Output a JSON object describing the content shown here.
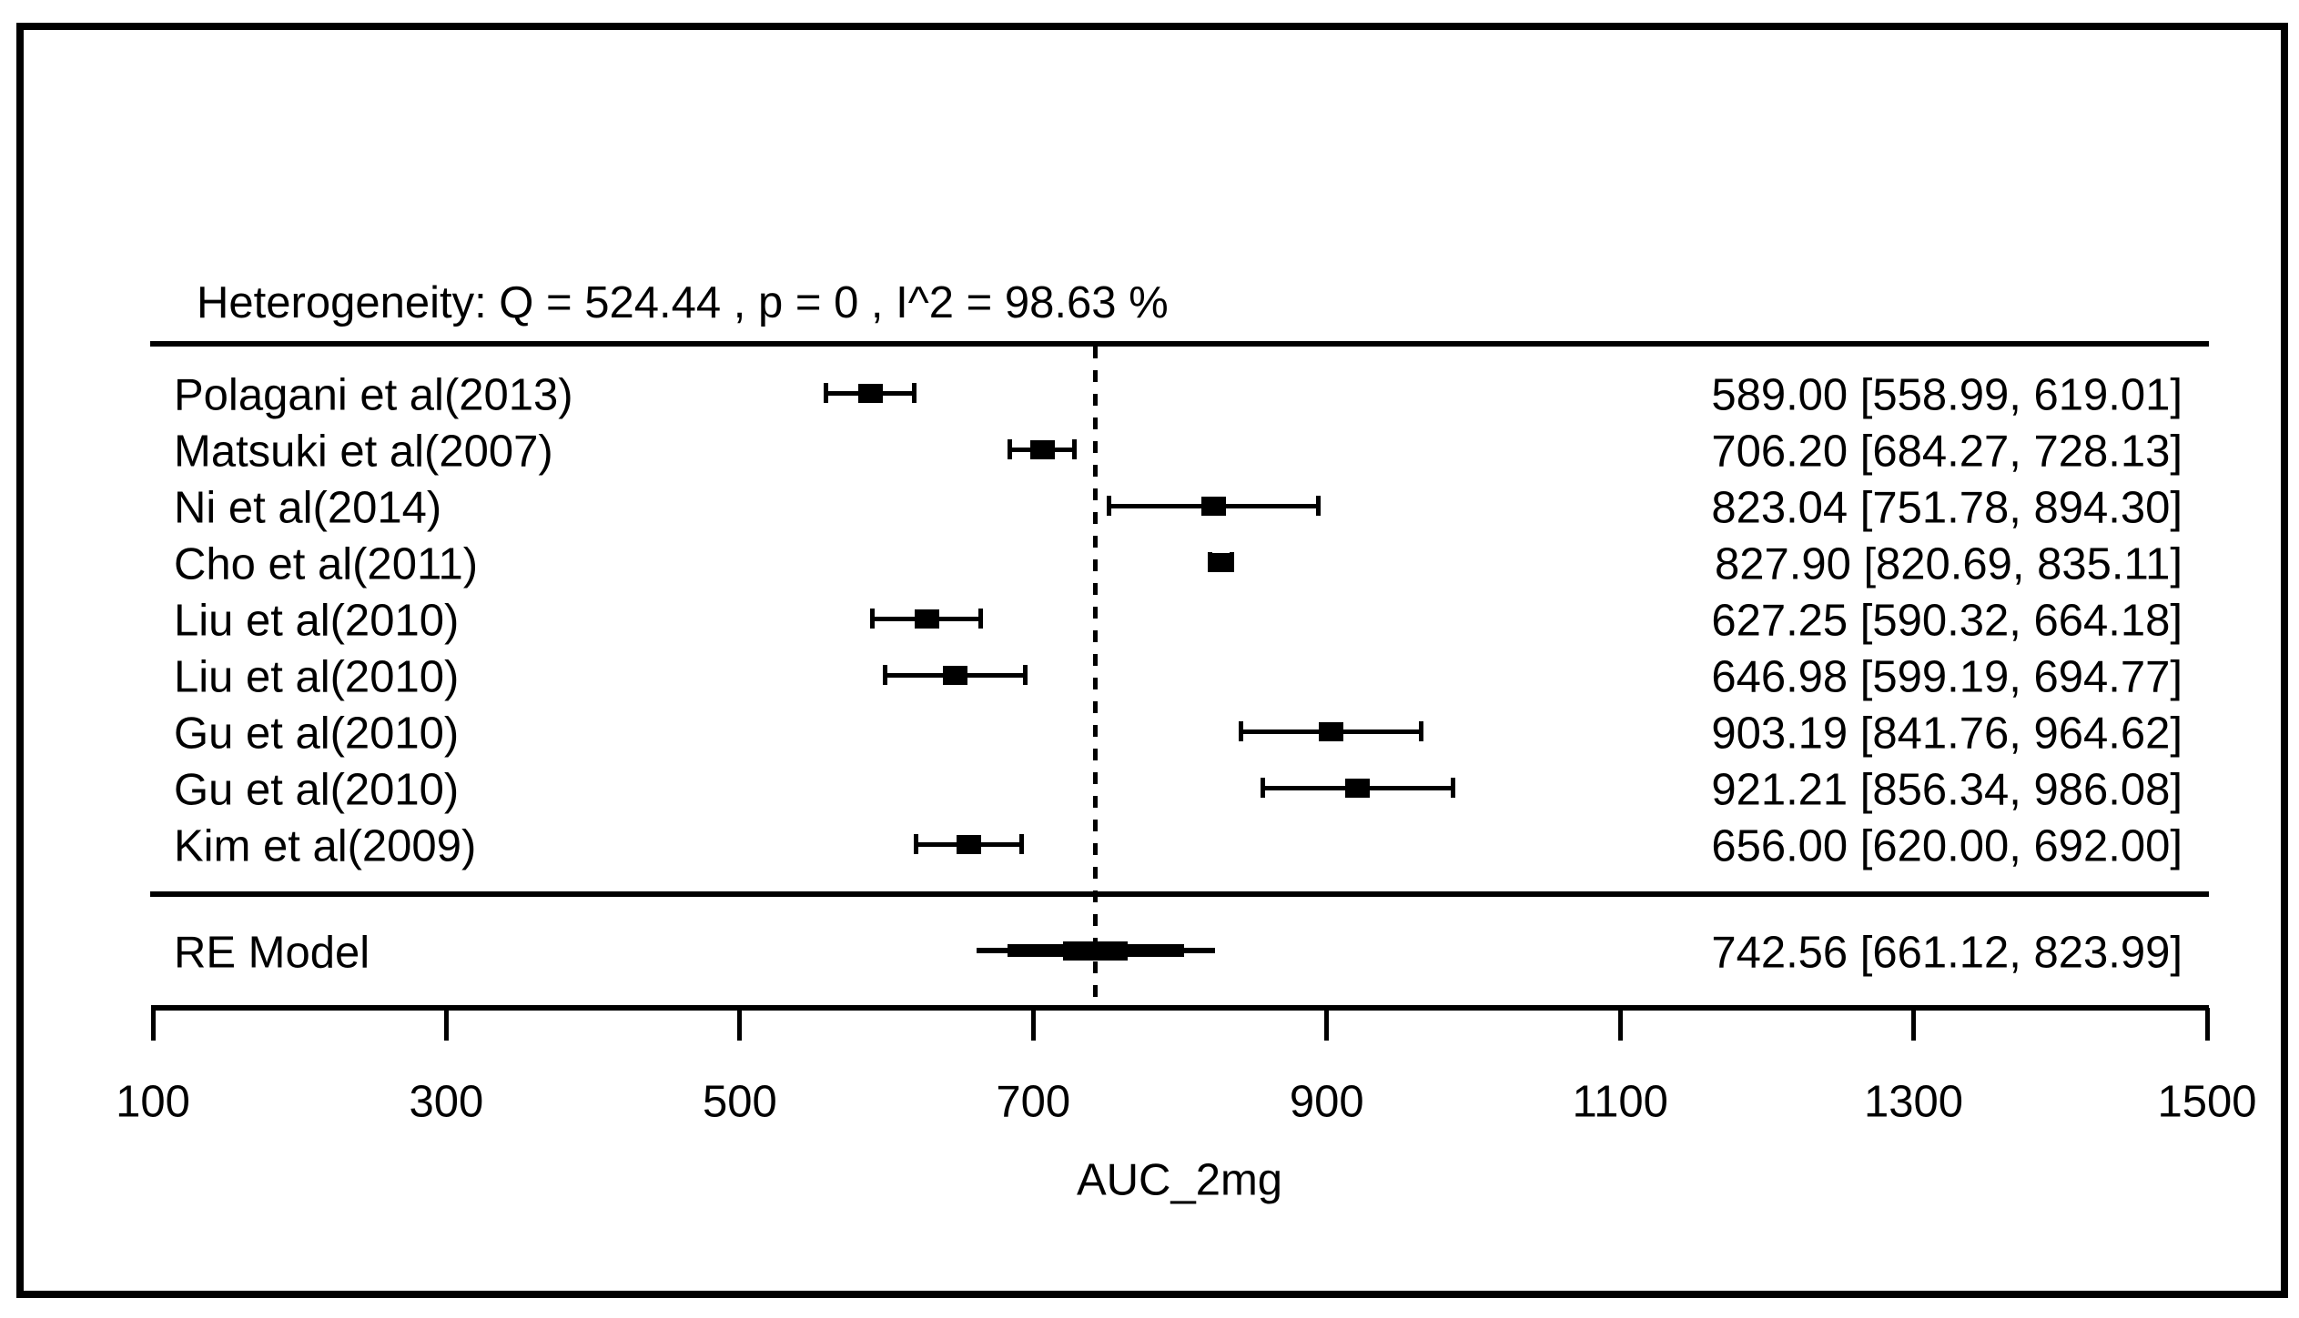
{
  "chart_data": {
    "type": "forest",
    "heterogeneity": "Heterogeneity: Q = 524.44 , p = 0 , I^2 = 98.63 %",
    "xlabel": "AUC_2mg",
    "x_axis": {
      "ticks": [
        100,
        300,
        500,
        700,
        900,
        1100,
        1300,
        1500
      ],
      "min": 100,
      "max": 1500
    },
    "reference_line": 742.56,
    "studies": [
      {
        "label": "Polagani et al(2013)",
        "estimate": 589.0,
        "ci_lower": 558.99,
        "ci_upper": 619.01,
        "display": "589.00 [558.99, 619.01]"
      },
      {
        "label": "Matsuki et al(2007)",
        "estimate": 706.2,
        "ci_lower": 684.27,
        "ci_upper": 728.13,
        "display": "706.20 [684.27, 728.13]"
      },
      {
        "label": "Ni et al(2014)",
        "estimate": 823.04,
        "ci_lower": 751.78,
        "ci_upper": 894.3,
        "display": "823.04 [751.78, 894.30]"
      },
      {
        "label": "Cho et al(2011)",
        "estimate": 827.9,
        "ci_lower": 820.69,
        "ci_upper": 835.11,
        "display": "827.90 [820.69, 835.11]"
      },
      {
        "label": "Liu et al(2010)",
        "estimate": 627.25,
        "ci_lower": 590.32,
        "ci_upper": 664.18,
        "display": "627.25 [590.32, 664.18]"
      },
      {
        "label": "Liu et al(2010)",
        "estimate": 646.98,
        "ci_lower": 599.19,
        "ci_upper": 694.77,
        "display": "646.98 [599.19, 694.77]"
      },
      {
        "label": "Gu et al(2010)",
        "estimate": 903.19,
        "ci_lower": 841.76,
        "ci_upper": 964.62,
        "display": "903.19 [841.76, 964.62]"
      },
      {
        "label": "Gu et al(2010)",
        "estimate": 921.21,
        "ci_lower": 856.34,
        "ci_upper": 986.08,
        "display": "921.21 [856.34, 986.08]"
      },
      {
        "label": "Kim et al(2009)",
        "estimate": 656.0,
        "ci_lower": 620.0,
        "ci_upper": 692.0,
        "display": "656.00 [620.00, 692.00]"
      }
    ],
    "summary": {
      "label": "RE Model",
      "estimate": 742.56,
      "ci_lower": 661.12,
      "ci_upper": 823.99,
      "display": "742.56 [661.12, 823.99]"
    },
    "colors": {
      "foreground": "#000000",
      "background": "#ffffff"
    }
  }
}
